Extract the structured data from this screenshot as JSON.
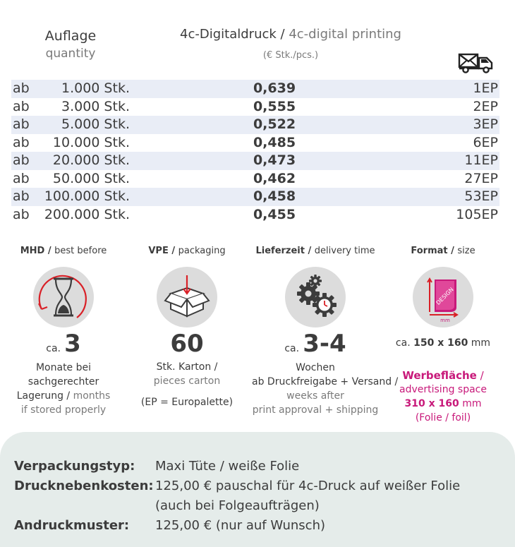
{
  "header": {
    "qty_de": "Auflage",
    "qty_en": "quantity",
    "price_de": "4c-Digitaldruck",
    "price_sep": " / ",
    "price_en": "4c-digital printing",
    "price_unit": "(€ Stk./pcs.)",
    "delivery_icon": "truck-mail-icon"
  },
  "rows": [
    {
      "ab": "ab",
      "qty": "1.000 Stk.",
      "price": "0,639",
      "ep": "1EP"
    },
    {
      "ab": "ab",
      "qty": "3.000 Stk.",
      "price": "0,555",
      "ep": "2EP"
    },
    {
      "ab": "ab",
      "qty": "5.000 Stk.",
      "price": "0,522",
      "ep": "3EP"
    },
    {
      "ab": "ab",
      "qty": "10.000 Stk.",
      "price": "0,485",
      "ep": "6EP"
    },
    {
      "ab": "ab",
      "qty": "20.000 Stk.",
      "price": "0,473",
      "ep": "11EP"
    },
    {
      "ab": "ab",
      "qty": "50.000 Stk.",
      "price": "0,462",
      "ep": "27EP"
    },
    {
      "ab": "ab",
      "qty": "100.000 Stk.",
      "price": "0,458",
      "ep": "53EP"
    },
    {
      "ab": "ab",
      "qty": "200.000 Stk.",
      "price": "0,455",
      "ep": "105EP"
    }
  ],
  "features": {
    "mhd": {
      "title_de": "MHD / ",
      "title_en": "best before",
      "ca": "ca.",
      "value": "3",
      "line1": "Monate bei",
      "line2": "sachgerechter",
      "line3a": "Lagerung / ",
      "line3b": "months",
      "line4": "if stored properly",
      "icon": "hourglass-icon"
    },
    "vpe": {
      "title_de": "VPE / ",
      "title_en": "packaging",
      "value": "60",
      "line1": "Stk. Karton /",
      "line2": "pieces carton",
      "line3": "(EP = Europalette)",
      "icon": "box-icon"
    },
    "delivery": {
      "title_de": "Lieferzeit / ",
      "title_en": "delivery time",
      "ca": "ca.",
      "value": "3-4",
      "line1": "Wochen",
      "line2": "ab Druckfreigabe + Versand /",
      "line3": "weeks after",
      "line4": "print approval + shipping",
      "icon": "gears-clock-icon"
    },
    "format": {
      "title_de": "Format / ",
      "title_en": "size",
      "ca": "ca. ",
      "size": "150 x 160",
      "unit": " mm",
      "ad_de": "Werbefläche",
      "ad_sep": " /",
      "ad_en": "advertising space",
      "ad_size": "310 x 160",
      "ad_unit": " mm",
      "foil": "(Folie / foil)",
      "icon_label_design": "DESIGN",
      "icon_label_mm": "mm",
      "icon": "format-icon"
    }
  },
  "bottom": {
    "rows": [
      {
        "label": "Verpackungstyp:",
        "value": "Maxi Tüte / weiße Folie"
      },
      {
        "label": "Drucknebenkosten:",
        "value": "125,00 € pauschal für 4c-Druck auf weißer Folie"
      },
      {
        "label": "",
        "value": "(auch bei Folgeaufträgen)"
      },
      {
        "label": "Andruckmuster:",
        "value": "125,00 € (nur auf Wunsch)"
      }
    ]
  },
  "colors": {
    "row_shade": "#e9edf6",
    "accent_magenta": "#c8197a",
    "accent_red": "#d92027",
    "bottom_bg": "#e5ecea"
  }
}
